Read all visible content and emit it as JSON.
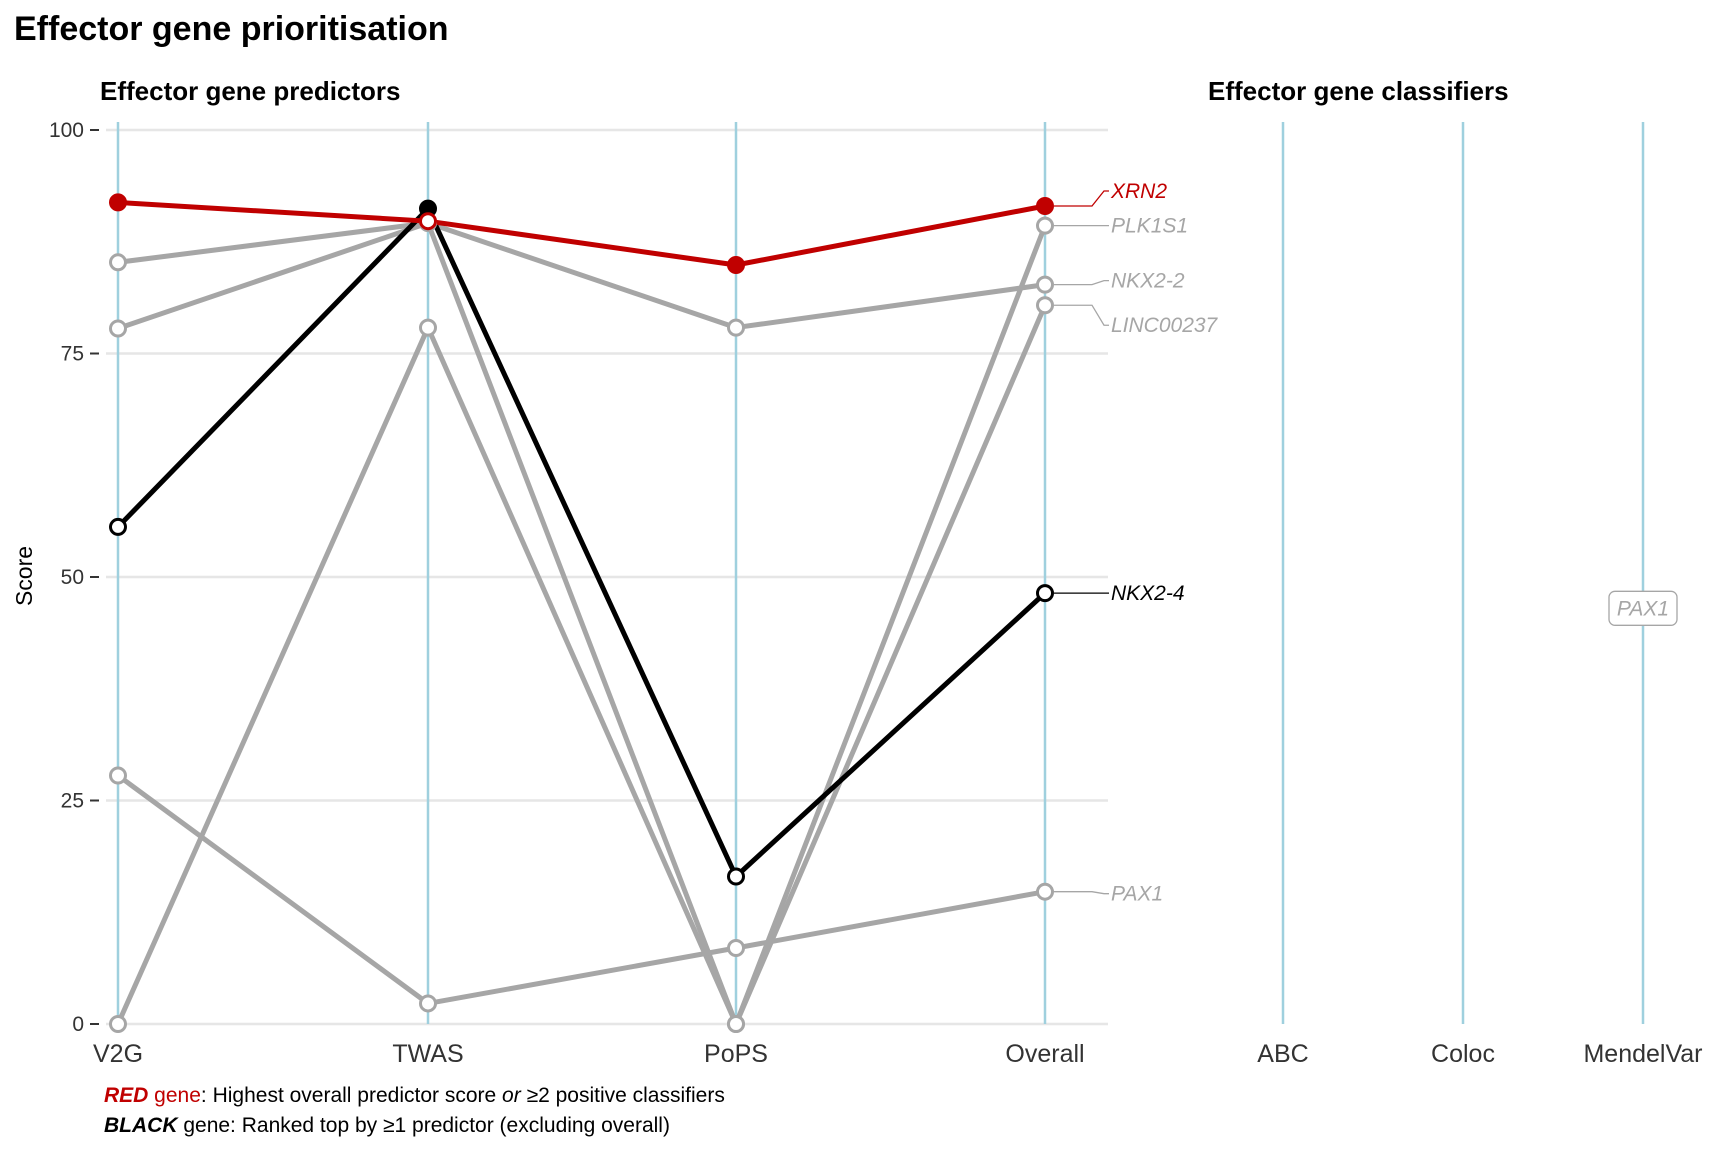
{
  "figure": {
    "title": "Effector gene prioritisation",
    "predictors_subtitle": "Effector gene predictors",
    "classifiers_subtitle": "Effector gene classifiers",
    "caption_red": {
      "keyword": "RED",
      "word": " gene",
      "text1": ": Highest overall predictor score ",
      "or": "or",
      "text2": " ≥2 positive classifiers"
    },
    "caption_black": {
      "keyword": "BLACK",
      "text": " gene: Ranked top by ≥1 predictor (excluding overall)"
    }
  },
  "colors": {
    "red": "#c00000",
    "black": "#000000",
    "grey": "#a6a6a6",
    "axis_line": "#9fd0de",
    "grid": "#e6e6e6"
  },
  "chart_data": [
    {
      "type": "line",
      "panel": "predictors",
      "categories": [
        "V2G",
        "TWAS",
        "PoPS",
        "Overall"
      ],
      "ylabel": "Score",
      "ylim": [
        0,
        100
      ],
      "yticks": [
        0,
        25,
        50,
        75,
        100
      ],
      "grid": true,
      "series": [
        {
          "name": "PLK1S1",
          "color": "grey",
          "values": [
            85.2,
            89.6,
            0,
            89.3
          ]
        },
        {
          "name": "NKX2-2",
          "color": "grey",
          "values": [
            77.8,
            89.6,
            77.9,
            82.7
          ]
        },
        {
          "name": "LINC00237",
          "color": "grey",
          "values": [
            0,
            77.9,
            0,
            80.4
          ]
        },
        {
          "name": "PAX1",
          "color": "grey",
          "values": [
            27.8,
            2.3,
            8.5,
            14.8
          ]
        },
        {
          "name": "NKX2-4",
          "color": "black",
          "values": [
            55.6,
            91.2,
            16.5,
            48.2
          ],
          "filled": [
            false,
            true,
            false,
            false
          ]
        },
        {
          "name": "XRN2",
          "color": "red",
          "values": [
            91.9,
            89.8,
            84.9,
            91.5
          ],
          "filled": [
            true,
            false,
            true,
            true
          ]
        }
      ]
    },
    {
      "type": "scatter",
      "panel": "classifiers",
      "categories": [
        "ABC",
        "Coloc",
        "MendelVar"
      ],
      "ylim": [
        0,
        100
      ],
      "annotations": [
        {
          "category": "MendelVar",
          "y": 46.5,
          "label": "PAX1",
          "color": "grey"
        }
      ]
    }
  ]
}
